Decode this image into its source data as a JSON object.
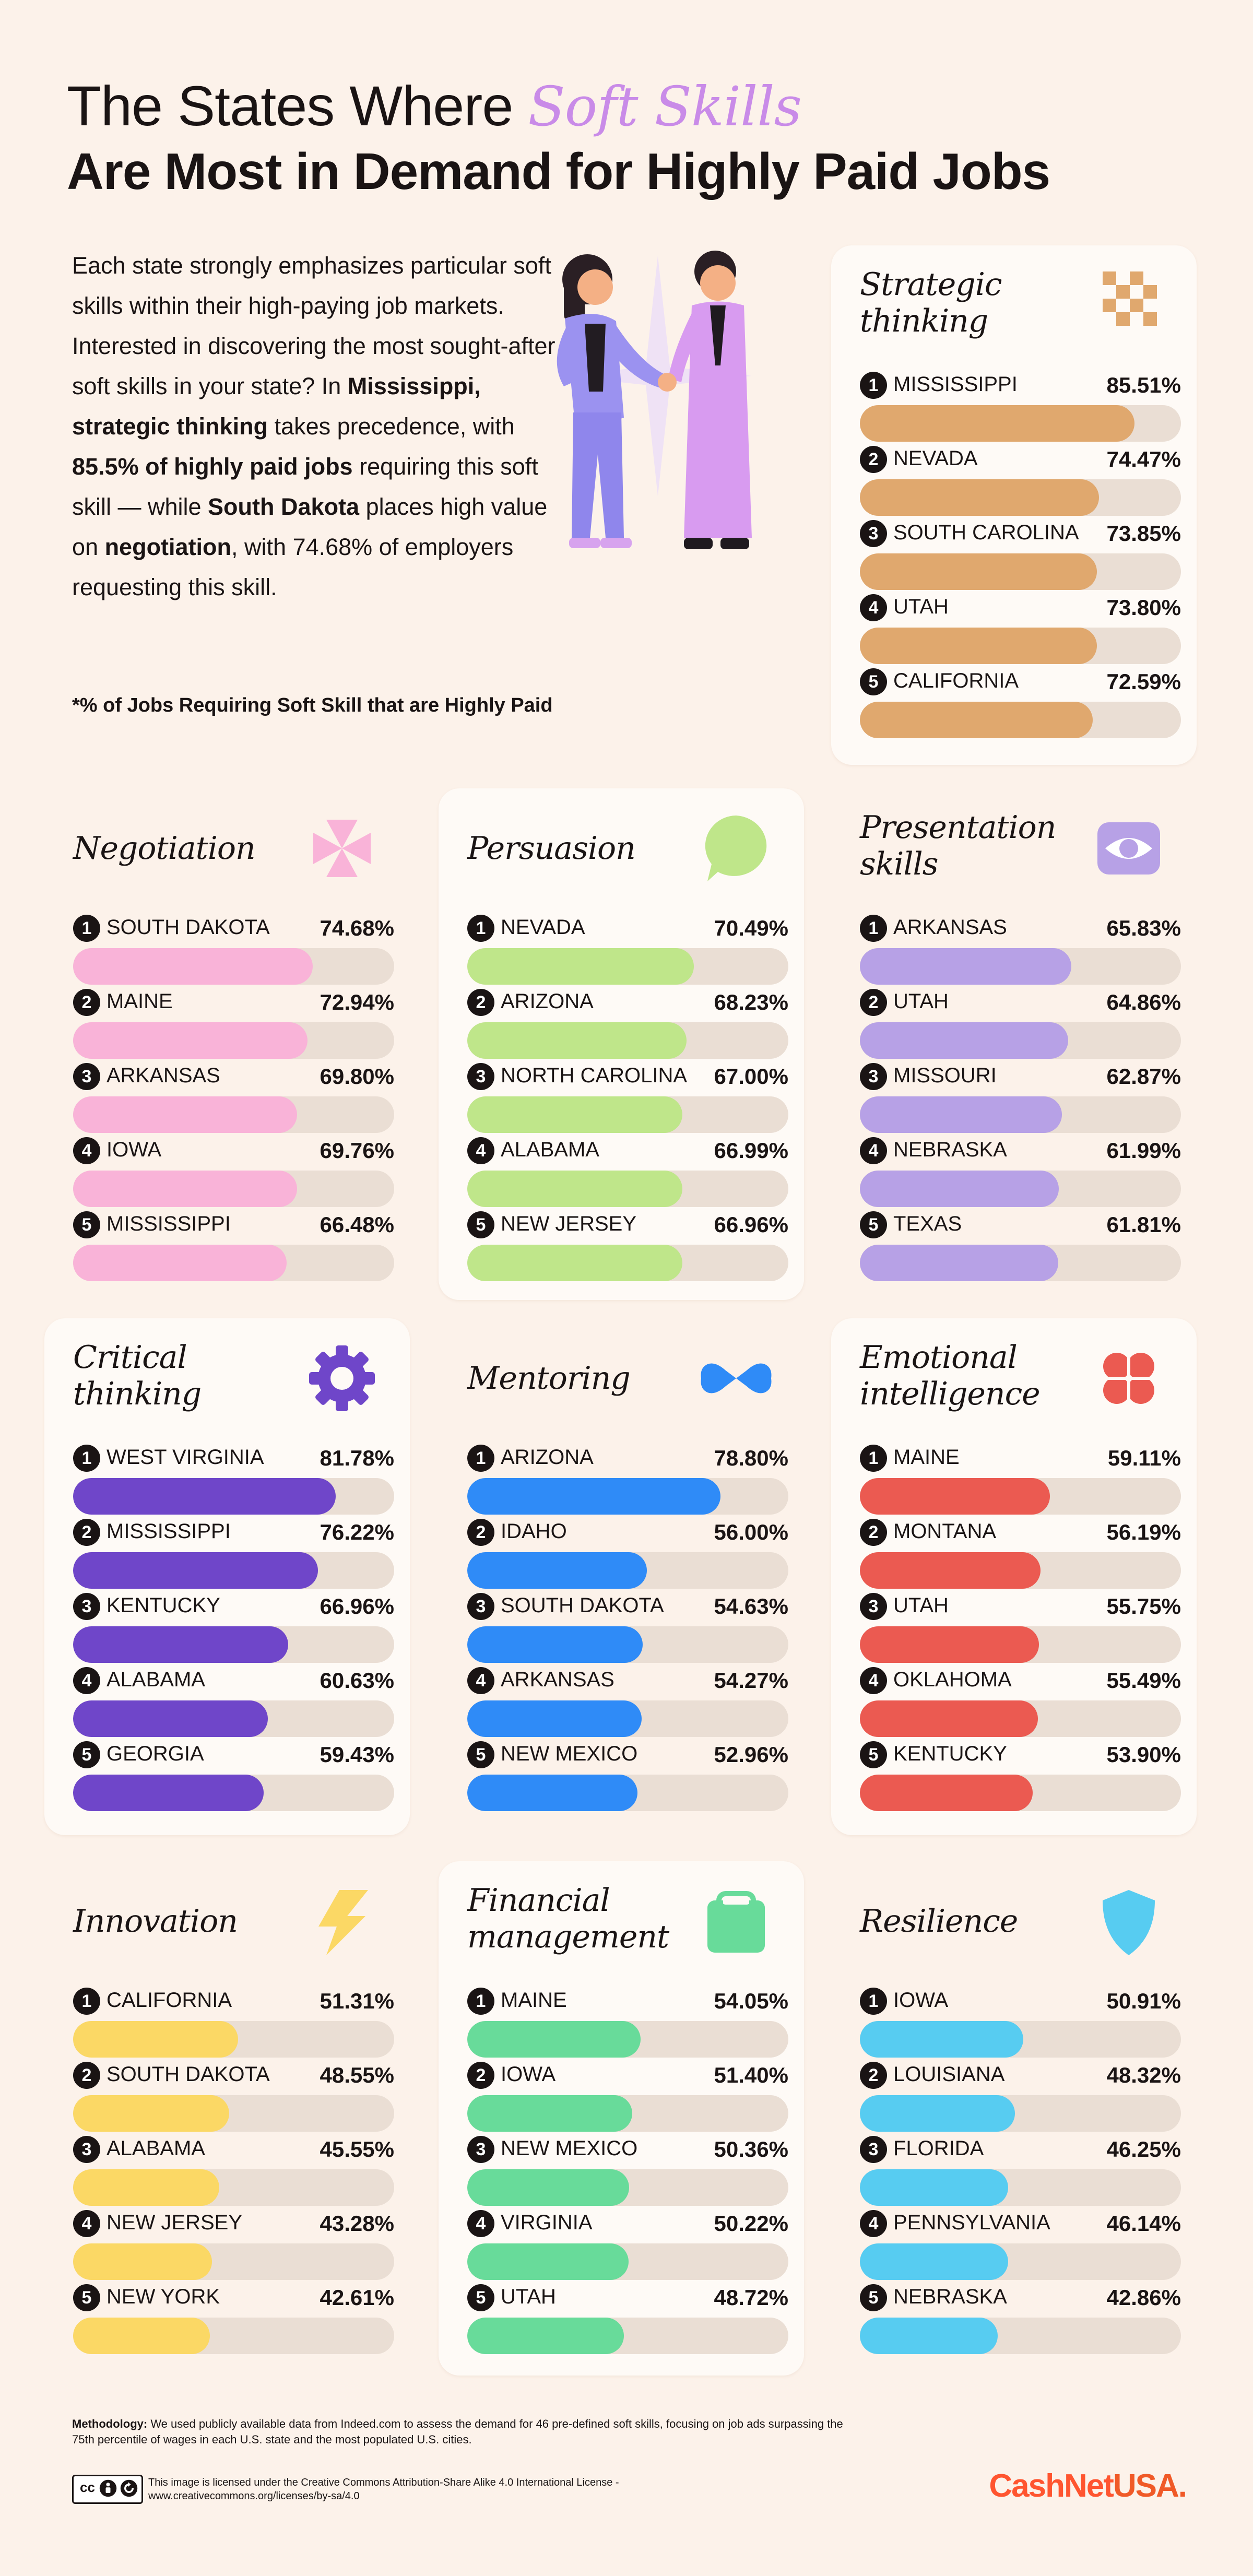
{
  "header": {
    "title_line1_prefix": "The States Where ",
    "title_line1_accent": "Soft Skills",
    "title_line2": "Are Most in Demand for Highly Paid Jobs"
  },
  "intro": {
    "p1": "Each state strongly emphasizes particular soft skills within their high-paying job markets. Interested in discovering the most sought-after soft skills in your state? In ",
    "b1": "Mississippi, strategic thinking",
    "p2": " takes precedence, with ",
    "b2": "85.5% of highly paid jobs",
    "p3": " requiring this soft skill — while ",
    "b3": "South Dakota",
    "p4": " places high value on ",
    "b4": "negotiation",
    "p5": ", with 74.68% of employers requesting this skill.",
    "footnote": "*% of Jobs Requiring Soft Skill that are Highly Paid"
  },
  "chart_data": [
    {
      "type": "bar",
      "title": "Strategic thinking",
      "icon": "checkerboard-icon",
      "color": "#e0a86e",
      "categories": [
        "MISSISSIPPI",
        "NEVADA",
        "SOUTH CAROLINA",
        "UTAH",
        "CALIFORNIA"
      ],
      "values": [
        85.51,
        74.47,
        73.85,
        73.8,
        72.59
      ],
      "labels": [
        "85.51%",
        "74.47%",
        "73.85%",
        "73.80%",
        "72.59%"
      ]
    },
    {
      "type": "bar",
      "title": "Negotiation",
      "icon": "pinwheel-icon",
      "color": "#f9b3d8",
      "categories": [
        "SOUTH DAKOTA",
        "MAINE",
        "ARKANSAS",
        "IOWA",
        "MISSISSIPPI"
      ],
      "values": [
        74.68,
        72.94,
        69.8,
        69.76,
        66.48
      ],
      "labels": [
        "74.68%",
        "72.94%",
        "69.80%",
        "69.76%",
        "66.48%"
      ]
    },
    {
      "type": "bar",
      "title": "Persuasion",
      "icon": "speech-bubble-icon",
      "color": "#bfe68a",
      "categories": [
        "NEVADA",
        "ARIZONA",
        "NORTH CAROLINA",
        "ALABAMA",
        "NEW JERSEY"
      ],
      "values": [
        70.49,
        68.23,
        67.0,
        66.99,
        66.96
      ],
      "labels": [
        "70.49%",
        "68.23%",
        "67.00%",
        "66.99%",
        "66.96%"
      ]
    },
    {
      "type": "bar",
      "title": "Presentation skills",
      "icon": "eye-icon",
      "color": "#b7a1e6",
      "categories": [
        "ARKANSAS",
        "UTAH",
        "MISSOURI",
        "NEBRASKA",
        "TEXAS"
      ],
      "values": [
        65.83,
        64.86,
        62.87,
        61.99,
        61.81
      ],
      "labels": [
        "65.83%",
        "64.86%",
        "62.87%",
        "61.99%",
        "61.81%"
      ]
    },
    {
      "type": "bar",
      "title": "Critical thinking",
      "icon": "gear-icon",
      "color": "#6f46c9",
      "categories": [
        "WEST VIRGINIA",
        "MISSISSIPPI",
        "KENTUCKY",
        "ALABAMA",
        "GEORGIA"
      ],
      "values": [
        81.78,
        76.22,
        66.96,
        60.63,
        59.43
      ],
      "labels": [
        "81.78%",
        "76.22%",
        "66.96%",
        "60.63%",
        "59.43%"
      ]
    },
    {
      "type": "bar",
      "title": "Mentoring",
      "icon": "bowtie-icon",
      "color": "#2f8bf7",
      "categories": [
        "ARIZONA",
        "IDAHO",
        "SOUTH DAKOTA",
        "ARKANSAS",
        "NEW MEXICO"
      ],
      "values": [
        78.8,
        56.0,
        54.63,
        54.27,
        52.96
      ],
      "labels": [
        "78.80%",
        "56.00%",
        "54.63%",
        "54.27%",
        "52.96%"
      ]
    },
    {
      "type": "bar",
      "title": "Emotional intelligence",
      "icon": "clover-icon",
      "color": "#eb5a51",
      "categories": [
        "MAINE",
        "MONTANA",
        "UTAH",
        "OKLAHOMA",
        "KENTUCKY"
      ],
      "values": [
        59.11,
        56.19,
        55.75,
        55.49,
        53.9
      ],
      "labels": [
        "59.11%",
        "56.19%",
        "55.75%",
        "55.49%",
        "53.90%"
      ]
    },
    {
      "type": "bar",
      "title": "Innovation",
      "icon": "lightning-icon",
      "color": "#fbd865",
      "categories": [
        "CALIFORNIA",
        "SOUTH DAKOTA",
        "ALABAMA",
        "NEW JERSEY",
        "NEW YORK"
      ],
      "values": [
        51.31,
        48.55,
        45.55,
        43.28,
        42.61
      ],
      "labels": [
        "51.31%",
        "48.55%",
        "45.55%",
        "43.28%",
        "42.61%"
      ]
    },
    {
      "type": "bar",
      "title": "Financial management",
      "icon": "wallet-icon",
      "color": "#68db9a",
      "categories": [
        "MAINE",
        "IOWA",
        "NEW MEXICO",
        "VIRGINIA",
        "UTAH"
      ],
      "values": [
        54.05,
        51.4,
        50.36,
        50.22,
        48.72
      ],
      "labels": [
        "54.05%",
        "51.40%",
        "50.36%",
        "50.22%",
        "48.72%"
      ]
    },
    {
      "type": "bar",
      "title": "Resilience",
      "icon": "shield-icon",
      "color": "#57ccf1",
      "categories": [
        "IOWA",
        "LOUISIANA",
        "FLORIDA",
        "PENNSYLVANIA",
        "NEBRASKA"
      ],
      "values": [
        50.91,
        48.32,
        46.25,
        46.14,
        42.86
      ],
      "labels": [
        "50.91%",
        "48.32%",
        "46.25%",
        "46.14%",
        "42.86%"
      ]
    }
  ],
  "footer": {
    "methodology_label": "Methodology:",
    "methodology_text": " We used publicly available data from Indeed.com to assess the demand for 46 pre-defined soft skills, focusing on job ads surpassing the 75th percentile of wages in each U.S. state and the most populated U.S. cities.",
    "license_text": "This image is licensed under the Creative Commons Attribution-Share Alike 4.0 International License - www.creativecommons.org/licenses/by-sa/4.0",
    "cc_badge": "cc",
    "logo_main": "CashNet",
    "logo_suffix": "USA."
  }
}
